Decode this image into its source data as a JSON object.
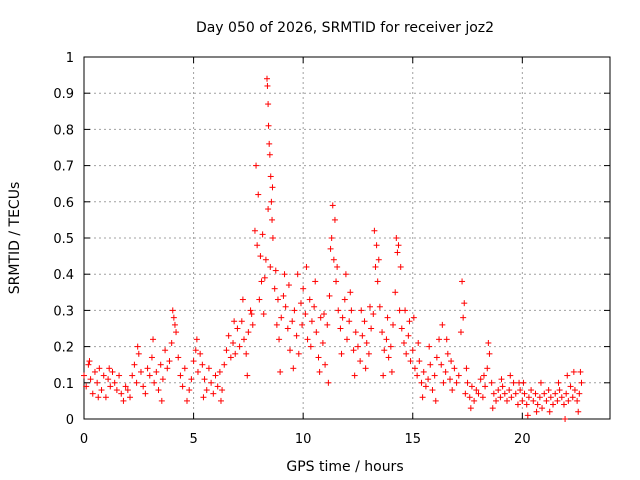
{
  "chart_data": {
    "type": "scatter",
    "title": "Day 050 of 2026, SRMTID for receiver joz2",
    "xlabel": "GPS time / hours",
    "ylabel": "SRMTID / TECUs",
    "xlim": [
      0,
      24
    ],
    "ylim": [
      0,
      1
    ],
    "x_ticks": [
      "0",
      "5",
      "10",
      "15",
      "20"
    ],
    "y_ticks": [
      "0",
      "0.1",
      "0.2",
      "0.3",
      "0.4",
      "0.5",
      "0.6",
      "0.7",
      "0.8",
      "0.9",
      "1"
    ],
    "grid": true,
    "marker": "+",
    "series": [
      {
        "name": "joz2",
        "color": "#ff0000",
        "points": [
          [
            0.0,
            0.12
          ],
          [
            0.1,
            0.09
          ],
          [
            0.2,
            0.15
          ],
          [
            0.3,
            0.11
          ],
          [
            0.4,
            0.07
          ],
          [
            0.5,
            0.13
          ],
          [
            0.6,
            0.1
          ],
          [
            0.7,
            0.14
          ],
          [
            0.8,
            0.08
          ],
          [
            0.9,
            0.12
          ],
          [
            1.0,
            0.06
          ],
          [
            1.1,
            0.11
          ],
          [
            1.2,
            0.09
          ],
          [
            1.3,
            0.13
          ],
          [
            1.4,
            0.1
          ],
          [
            1.5,
            0.08
          ],
          [
            1.6,
            0.12
          ],
          [
            1.7,
            0.07
          ],
          [
            1.8,
            0.05
          ],
          [
            1.9,
            0.09
          ],
          [
            2.0,
            0.08
          ],
          [
            2.1,
            0.06
          ],
          [
            2.2,
            0.12
          ],
          [
            2.3,
            0.15
          ],
          [
            2.4,
            0.1
          ],
          [
            2.5,
            0.18
          ],
          [
            2.6,
            0.13
          ],
          [
            2.7,
            0.09
          ],
          [
            2.8,
            0.07
          ],
          [
            2.9,
            0.14
          ],
          [
            3.0,
            0.12
          ],
          [
            3.1,
            0.17
          ],
          [
            3.2,
            0.1
          ],
          [
            3.3,
            0.13
          ],
          [
            3.4,
            0.08
          ],
          [
            3.5,
            0.15
          ],
          [
            3.6,
            0.11
          ],
          [
            3.7,
            0.19
          ],
          [
            3.8,
            0.14
          ],
          [
            3.9,
            0.16
          ],
          [
            4.0,
            0.21
          ],
          [
            4.1,
            0.28
          ],
          [
            4.2,
            0.24
          ],
          [
            4.3,
            0.17
          ],
          [
            4.4,
            0.12
          ],
          [
            4.5,
            0.09
          ],
          [
            4.6,
            0.14
          ],
          [
            4.7,
            0.05
          ],
          [
            4.8,
            0.08
          ],
          [
            4.9,
            0.11
          ],
          [
            5.0,
            0.16
          ],
          [
            5.1,
            0.19
          ],
          [
            5.2,
            0.13
          ],
          [
            5.3,
            0.18
          ],
          [
            5.4,
            0.15
          ],
          [
            5.5,
            0.11
          ],
          [
            5.6,
            0.08
          ],
          [
            5.7,
            0.14
          ],
          [
            5.8,
            0.1
          ],
          [
            5.9,
            0.07
          ],
          [
            6.0,
            0.12
          ],
          [
            6.1,
            0.09
          ],
          [
            6.2,
            0.13
          ],
          [
            6.3,
            0.08
          ],
          [
            6.4,
            0.15
          ],
          [
            6.5,
            0.19
          ],
          [
            6.6,
            0.23
          ],
          [
            6.7,
            0.17
          ],
          [
            6.8,
            0.21
          ],
          [
            6.9,
            0.18
          ],
          [
            7.0,
            0.25
          ],
          [
            7.1,
            0.2
          ],
          [
            7.2,
            0.27
          ],
          [
            7.3,
            0.22
          ],
          [
            7.4,
            0.18
          ],
          [
            7.5,
            0.24
          ],
          [
            7.6,
            0.3
          ],
          [
            7.7,
            0.26
          ],
          [
            7.8,
            0.52
          ],
          [
            7.9,
            0.48
          ],
          [
            8.0,
            0.33
          ],
          [
            8.1,
            0.38
          ],
          [
            8.2,
            0.29
          ],
          [
            8.3,
            0.44
          ],
          [
            8.4,
            0.58
          ],
          [
            8.5,
            0.42
          ],
          [
            8.6,
            0.64
          ],
          [
            8.7,
            0.36
          ],
          [
            8.8,
            0.26
          ],
          [
            8.9,
            0.22
          ],
          [
            9.0,
            0.28
          ],
          [
            9.1,
            0.34
          ],
          [
            9.2,
            0.31
          ],
          [
            9.3,
            0.25
          ],
          [
            9.4,
            0.19
          ],
          [
            9.5,
            0.27
          ],
          [
            9.6,
            0.3
          ],
          [
            9.7,
            0.23
          ],
          [
            9.8,
            0.18
          ],
          [
            9.9,
            0.32
          ],
          [
            10.0,
            0.36
          ],
          [
            10.1,
            0.29
          ],
          [
            10.2,
            0.22
          ],
          [
            10.3,
            0.33
          ],
          [
            10.4,
            0.27
          ],
          [
            10.5,
            0.31
          ],
          [
            10.6,
            0.24
          ],
          [
            10.7,
            0.17
          ],
          [
            10.8,
            0.28
          ],
          [
            10.9,
            0.21
          ],
          [
            11.0,
            0.15
          ],
          [
            11.1,
            0.26
          ],
          [
            11.2,
            0.34
          ],
          [
            11.3,
            0.5
          ],
          [
            11.4,
            0.44
          ],
          [
            11.5,
            0.38
          ],
          [
            11.6,
            0.3
          ],
          [
            11.7,
            0.25
          ],
          [
            11.8,
            0.28
          ],
          [
            11.9,
            0.33
          ],
          [
            12.0,
            0.22
          ],
          [
            12.1,
            0.27
          ],
          [
            12.2,
            0.3
          ],
          [
            12.3,
            0.19
          ],
          [
            12.4,
            0.24
          ],
          [
            12.5,
            0.2
          ],
          [
            12.6,
            0.16
          ],
          [
            12.7,
            0.23
          ],
          [
            12.8,
            0.27
          ],
          [
            12.9,
            0.21
          ],
          [
            13.0,
            0.18
          ],
          [
            13.1,
            0.25
          ],
          [
            13.2,
            0.29
          ],
          [
            13.3,
            0.42
          ],
          [
            13.4,
            0.38
          ],
          [
            13.5,
            0.31
          ],
          [
            13.6,
            0.24
          ],
          [
            13.7,
            0.19
          ],
          [
            13.8,
            0.22
          ],
          [
            13.9,
            0.17
          ],
          [
            14.0,
            0.2
          ],
          [
            14.1,
            0.26
          ],
          [
            14.2,
            0.35
          ],
          [
            14.3,
            0.46
          ],
          [
            14.4,
            0.3
          ],
          [
            14.5,
            0.25
          ],
          [
            14.6,
            0.21
          ],
          [
            14.7,
            0.18
          ],
          [
            14.8,
            0.23
          ],
          [
            14.9,
            0.16
          ],
          [
            15.0,
            0.19
          ],
          [
            15.1,
            0.14
          ],
          [
            15.2,
            0.12
          ],
          [
            15.3,
            0.16
          ],
          [
            15.4,
            0.1
          ],
          [
            15.5,
            0.13
          ],
          [
            15.6,
            0.09
          ],
          [
            15.7,
            0.11
          ],
          [
            15.8,
            0.15
          ],
          [
            15.9,
            0.08
          ],
          [
            16.0,
            0.12
          ],
          [
            16.1,
            0.17
          ],
          [
            16.2,
            0.22
          ],
          [
            16.3,
            0.15
          ],
          [
            16.4,
            0.1
          ],
          [
            16.5,
            0.13
          ],
          [
            16.6,
            0.18
          ],
          [
            16.7,
            0.11
          ],
          [
            16.8,
            0.08
          ],
          [
            16.9,
            0.14
          ],
          [
            17.0,
            0.1
          ],
          [
            17.1,
            0.12
          ],
          [
            17.2,
            0.24
          ],
          [
            17.3,
            0.28
          ],
          [
            17.4,
            0.07
          ],
          [
            17.5,
            0.1
          ],
          [
            17.6,
            0.06
          ],
          [
            17.7,
            0.09
          ],
          [
            17.8,
            0.05
          ],
          [
            17.9,
            0.08
          ],
          [
            18.0,
            0.07
          ],
          [
            18.1,
            0.11
          ],
          [
            18.2,
            0.06
          ],
          [
            18.3,
            0.09
          ],
          [
            18.4,
            0.14
          ],
          [
            18.5,
            0.18
          ],
          [
            18.6,
            0.1
          ],
          [
            18.7,
            0.07
          ],
          [
            18.8,
            0.05
          ],
          [
            18.9,
            0.08
          ],
          [
            19.0,
            0.06
          ],
          [
            19.1,
            0.09
          ],
          [
            19.2,
            0.07
          ],
          [
            19.3,
            0.05
          ],
          [
            19.4,
            0.08
          ],
          [
            19.5,
            0.06
          ],
          [
            19.6,
            0.1
          ],
          [
            19.7,
            0.07
          ],
          [
            19.8,
            0.04
          ],
          [
            19.9,
            0.08
          ],
          [
            20.0,
            0.05
          ],
          [
            20.1,
            0.07
          ],
          [
            20.2,
            0.04
          ],
          [
            20.3,
            0.06
          ],
          [
            20.4,
            0.08
          ],
          [
            20.5,
            0.05
          ],
          [
            20.6,
            0.07
          ],
          [
            20.7,
            0.04
          ],
          [
            20.8,
            0.06
          ],
          [
            20.9,
            0.03
          ],
          [
            21.0,
            0.07
          ],
          [
            21.1,
            0.05
          ],
          [
            21.2,
            0.08
          ],
          [
            21.3,
            0.06
          ],
          [
            21.4,
            0.04
          ],
          [
            21.5,
            0.07
          ],
          [
            21.6,
            0.05
          ],
          [
            21.7,
            0.08
          ],
          [
            21.8,
            0.06
          ],
          [
            21.9,
            0.04
          ],
          [
            22.0,
            0.07
          ],
          [
            22.1,
            0.05
          ],
          [
            22.2,
            0.09
          ],
          [
            22.3,
            0.06
          ],
          [
            22.4,
            0.08
          ],
          [
            22.5,
            0.05
          ],
          [
            22.6,
            0.07
          ],
          [
            22.7,
            0.1
          ],
          [
            0.25,
            0.16
          ],
          [
            0.65,
            0.06
          ],
          [
            1.15,
            0.14
          ],
          [
            2.45,
            0.2
          ],
          [
            3.15,
            0.22
          ],
          [
            3.55,
            0.05
          ],
          [
            4.05,
            0.3
          ],
          [
            4.15,
            0.26
          ],
          [
            5.15,
            0.22
          ],
          [
            5.45,
            0.06
          ],
          [
            6.25,
            0.05
          ],
          [
            6.85,
            0.27
          ],
          [
            7.25,
            0.33
          ],
          [
            7.45,
            0.12
          ],
          [
            7.65,
            0.29
          ],
          [
            7.85,
            0.7
          ],
          [
            7.95,
            0.62
          ],
          [
            8.05,
            0.45
          ],
          [
            8.15,
            0.51
          ],
          [
            8.25,
            0.39
          ],
          [
            8.35,
            0.94
          ],
          [
            8.37,
            0.92
          ],
          [
            8.4,
            0.87
          ],
          [
            8.42,
            0.81
          ],
          [
            8.45,
            0.76
          ],
          [
            8.48,
            0.73
          ],
          [
            8.52,
            0.67
          ],
          [
            8.55,
            0.6
          ],
          [
            8.58,
            0.55
          ],
          [
            8.62,
            0.5
          ],
          [
            8.75,
            0.41
          ],
          [
            8.85,
            0.33
          ],
          [
            8.95,
            0.13
          ],
          [
            9.15,
            0.4
          ],
          [
            9.35,
            0.37
          ],
          [
            9.55,
            0.14
          ],
          [
            9.75,
            0.4
          ],
          [
            9.95,
            0.26
          ],
          [
            10.15,
            0.42
          ],
          [
            10.35,
            0.2
          ],
          [
            10.55,
            0.38
          ],
          [
            10.75,
            0.13
          ],
          [
            10.95,
            0.29
          ],
          [
            11.15,
            0.1
          ],
          [
            11.25,
            0.47
          ],
          [
            11.35,
            0.59
          ],
          [
            11.45,
            0.55
          ],
          [
            11.55,
            0.42
          ],
          [
            11.75,
            0.18
          ],
          [
            11.95,
            0.4
          ],
          [
            12.15,
            0.35
          ],
          [
            12.35,
            0.12
          ],
          [
            12.65,
            0.3
          ],
          [
            12.85,
            0.14
          ],
          [
            13.05,
            0.31
          ],
          [
            13.25,
            0.52
          ],
          [
            13.35,
            0.48
          ],
          [
            13.45,
            0.44
          ],
          [
            13.65,
            0.12
          ],
          [
            13.85,
            0.28
          ],
          [
            14.05,
            0.13
          ],
          [
            14.25,
            0.5
          ],
          [
            14.35,
            0.48
          ],
          [
            14.45,
            0.42
          ],
          [
            14.65,
            0.3
          ],
          [
            14.85,
            0.27
          ],
          [
            15.05,
            0.28
          ],
          [
            15.25,
            0.21
          ],
          [
            15.45,
            0.06
          ],
          [
            15.75,
            0.2
          ],
          [
            16.05,
            0.05
          ],
          [
            16.35,
            0.26
          ],
          [
            16.55,
            0.22
          ],
          [
            16.75,
            0.16
          ],
          [
            17.25,
            0.38
          ],
          [
            17.35,
            0.32
          ],
          [
            17.45,
            0.14
          ],
          [
            17.65,
            0.03
          ],
          [
            18.25,
            0.12
          ],
          [
            18.45,
            0.21
          ],
          [
            18.65,
            0.03
          ],
          [
            19.05,
            0.11
          ],
          [
            19.45,
            0.12
          ],
          [
            19.85,
            0.1
          ],
          [
            20.05,
            0.1
          ],
          [
            20.25,
            0.01
          ],
          [
            20.65,
            0.02
          ],
          [
            20.85,
            0.1
          ],
          [
            21.25,
            0.02
          ],
          [
            21.65,
            0.1
          ],
          [
            21.95,
            0.0
          ],
          [
            22.05,
            0.12
          ],
          [
            22.35,
            0.13
          ],
          [
            22.55,
            0.02
          ],
          [
            22.65,
            0.13
          ]
        ]
      }
    ]
  }
}
